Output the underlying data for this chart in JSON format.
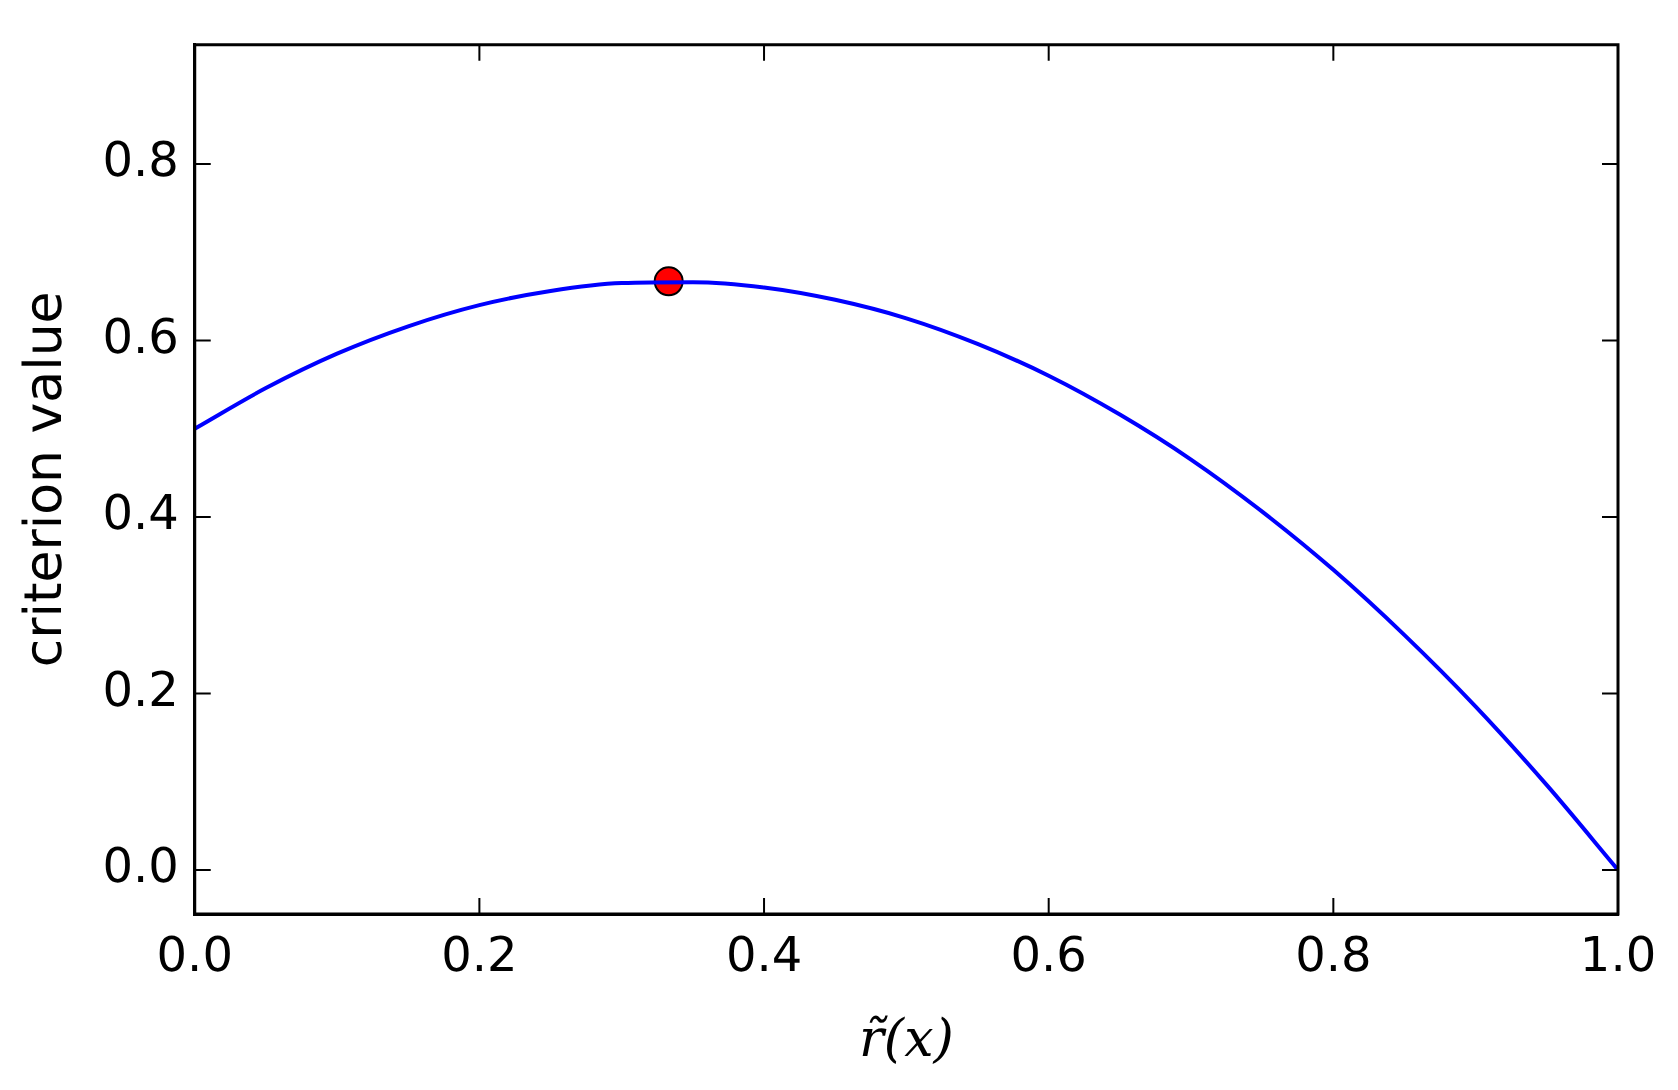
{
  "chart_data": {
    "type": "line",
    "xlabel": "r̃(x)",
    "ylabel": "criterion value",
    "xlim": [
      0,
      1
    ],
    "xticks": [
      {
        "value": 0,
        "label": "0.0"
      },
      {
        "value": 0.2,
        "label": "0.2"
      },
      {
        "value": 0.4,
        "label": "0.4"
      },
      {
        "value": 0.6,
        "label": "0.6"
      },
      {
        "value": 0.8,
        "label": "0.8"
      },
      {
        "value": 1,
        "label": "1.0"
      }
    ],
    "ylim": [
      -0.05,
      0.935
    ],
    "yticks": [
      {
        "value": 0,
        "label": "0.0"
      },
      {
        "value": 0.2,
        "label": "0.2"
      },
      {
        "value": 0.4,
        "label": "0.4"
      },
      {
        "value": 0.6,
        "label": "0.6"
      },
      {
        "value": 0.8,
        "label": "0.8"
      }
    ],
    "grid": false,
    "legend": false,
    "series": [
      {
        "color": "#0000ff",
        "marker": "none",
        "x": [
          0,
          0.05,
          0.1,
          0.15,
          0.2,
          0.25,
          0.3,
          0.35,
          0.4,
          0.45,
          0.5,
          0.55,
          0.6,
          0.65,
          0.7,
          0.75,
          0.8,
          0.85,
          0.9,
          0.95,
          1
        ],
        "values": [
          0.5,
          0.546,
          0.585,
          0.616,
          0.64,
          0.656,
          0.665,
          0.666,
          0.66,
          0.646,
          0.625,
          0.596,
          0.56,
          0.516,
          0.465,
          0.406,
          0.34,
          0.266,
          0.185,
          0.096,
          0
        ]
      },
      {
        "type": "scatter",
        "color": "#ff0000",
        "marker": "circle",
        "x": [
          0.333
        ],
        "values": [
          0.667
        ]
      }
    ]
  }
}
